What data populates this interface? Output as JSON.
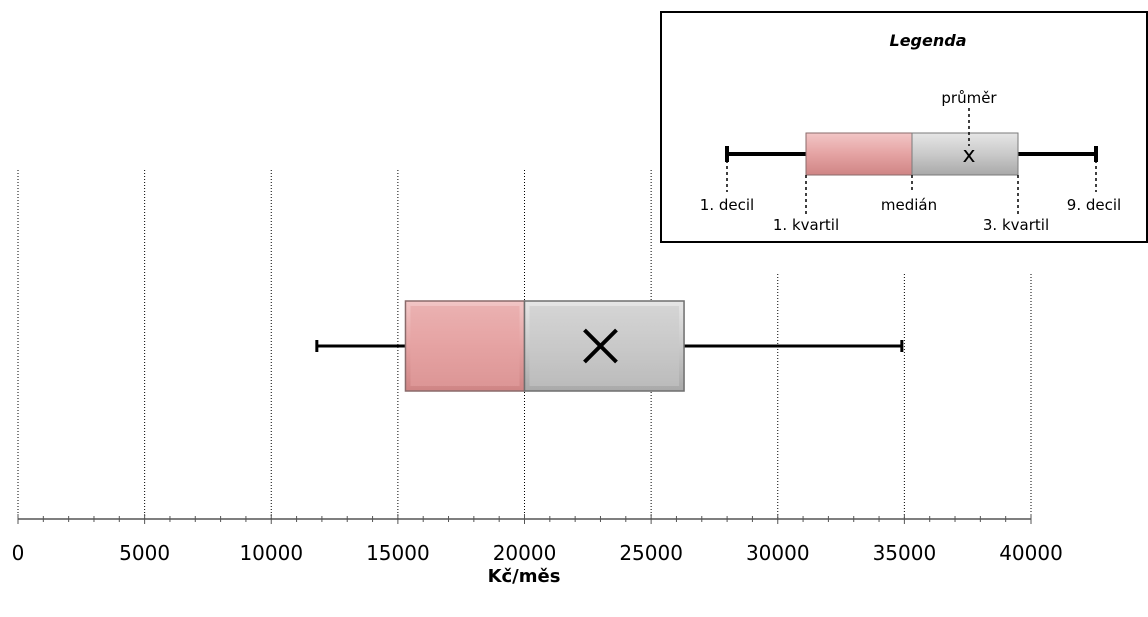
{
  "chart_data": {
    "type": "boxplot",
    "xlabel": "Kč/měs",
    "xlim": [
      0,
      40000
    ],
    "xticks": [
      0,
      5000,
      10000,
      15000,
      20000,
      25000,
      30000,
      35000,
      40000
    ],
    "grid": "vertical",
    "boxes": [
      {
        "decile_1": 11800,
        "quartile_1": 15300,
        "median": 20000,
        "mean": 23000,
        "quartile_3": 26300,
        "decile_9": 34900
      }
    ],
    "colors": {
      "lower_box": "#e5a3a3",
      "upper_box": "#c8c8c8",
      "grid": "#000000"
    }
  },
  "legend": {
    "title": "Legenda",
    "mean_symbol": "x",
    "labels": {
      "mean": "průměr",
      "decile_1": "1. decil",
      "quartile_1": "1. kvartil",
      "median": "medián",
      "quartile_3": "3. kvartil",
      "decile_9": "9. decil"
    }
  }
}
